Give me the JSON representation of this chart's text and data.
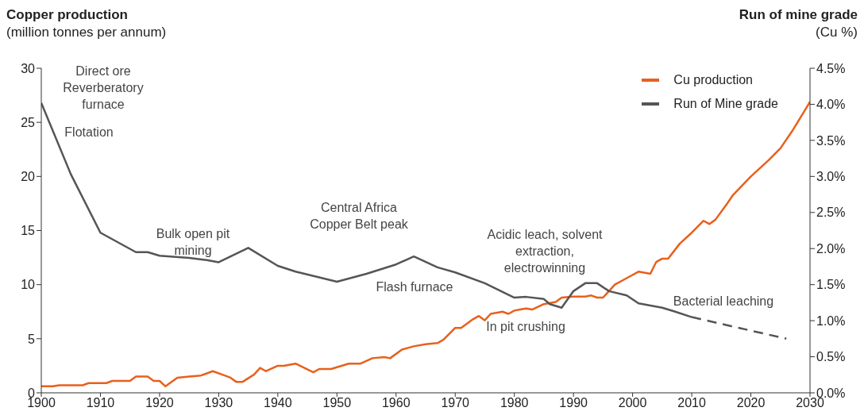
{
  "chart_data": {
    "type": "line",
    "ylabel": "Copper production\n(million tonnes per annum)",
    "y2label": "Run of mine grade\n(Cu %)",
    "xlim": [
      1900,
      2030
    ],
    "xticks": [
      1900,
      1910,
      1920,
      1930,
      1940,
      1950,
      1960,
      1970,
      1980,
      1990,
      2000,
      2010,
      2020,
      2030
    ],
    "ylim": [
      0,
      30
    ],
    "yticks": [
      0,
      5,
      10,
      15,
      20,
      25,
      30
    ],
    "y2lim": [
      0,
      4.5
    ],
    "y2ticks": [
      {
        "value": 0,
        "label": "0.0%"
      },
      {
        "value": 0.5,
        "label": "0.5%"
      },
      {
        "value": 1,
        "label": "1.0%"
      },
      {
        "value": 1.5,
        "label": "1.5%"
      },
      {
        "value": 2,
        "label": "2.0%"
      },
      {
        "value": 2.5,
        "label": "2.5%"
      },
      {
        "value": 3,
        "label": "3.0%"
      },
      {
        "value": 3.5,
        "label": "3.5%"
      },
      {
        "value": 4,
        "label": "4.0%"
      },
      {
        "value": 4.5,
        "label": "4.5%"
      }
    ],
    "grid": false,
    "legend": "top right",
    "marker": "none",
    "series": [
      {
        "name": "Cu production",
        "color": "#e8601c",
        "line_style": "solid",
        "x": [
          1900,
          1902,
          1903,
          1905,
          1907,
          1908,
          1910,
          1911,
          1912,
          1915,
          1916,
          1918,
          1919,
          1920,
          1921,
          1923,
          1925,
          1927,
          1929,
          1931,
          1932,
          1933,
          1934,
          1936,
          1937,
          1938,
          1940,
          1941,
          1943,
          1946,
          1947,
          1949,
          1952,
          1954,
          1956,
          1958,
          1959,
          1961,
          1963,
          1965,
          1967,
          1968,
          1970,
          1971,
          1973,
          1974,
          1975,
          1976,
          1978,
          1979,
          1980,
          1981,
          1982,
          1983,
          1985,
          1987,
          1988,
          1990,
          1992,
          1993,
          1994,
          1995,
          1997,
          1999,
          2001,
          2003,
          2004,
          2005,
          2006,
          2008,
          2010,
          2012,
          2013,
          2014,
          2016,
          2017,
          2020,
          2023,
          2025,
          2027,
          2030
        ],
        "values": [
          0.6,
          0.6,
          0.7,
          0.7,
          0.7,
          0.9,
          0.9,
          0.9,
          1.1,
          1.1,
          1.5,
          1.5,
          1.1,
          1.1,
          0.6,
          1.4,
          1.5,
          1.6,
          2.0,
          1.6,
          1.4,
          1.0,
          1.0,
          1.7,
          2.3,
          2.0,
          2.5,
          2.5,
          2.7,
          1.9,
          2.2,
          2.2,
          2.7,
          2.7,
          3.2,
          3.3,
          3.2,
          4.0,
          4.3,
          4.5,
          4.6,
          4.9,
          6.0,
          6.0,
          6.8,
          7.1,
          6.7,
          7.3,
          7.5,
          7.3,
          7.6,
          7.7,
          7.8,
          7.7,
          8.2,
          8.4,
          8.8,
          8.9,
          8.9,
          9.0,
          8.8,
          8.8,
          10.0,
          10.6,
          11.2,
          11.0,
          12.1,
          12.4,
          12.4,
          13.8,
          14.8,
          15.9,
          15.6,
          16.0,
          17.5,
          18.3,
          20.0,
          21.5,
          22.6,
          24.2,
          26.9
        ]
      },
      {
        "name": "Run of Mine grade",
        "color": "#555555",
        "axis": "y2",
        "line_style": "solid",
        "x": [
          1900,
          1905,
          1910,
          1916,
          1918,
          1920,
          1925,
          1928,
          1930,
          1935,
          1940,
          1943,
          1950,
          1955,
          1960,
          1963,
          1967,
          1970,
          1975,
          1980,
          1982,
          1985,
          1986,
          1988,
          1990,
          1992,
          1994,
          1996,
          1999,
          2001,
          2005,
          2007,
          2010
        ],
        "values": [
          4.02,
          3.03,
          2.22,
          1.95,
          1.95,
          1.9,
          1.87,
          1.84,
          1.81,
          2.01,
          1.76,
          1.68,
          1.54,
          1.65,
          1.78,
          1.89,
          1.74,
          1.67,
          1.52,
          1.32,
          1.33,
          1.3,
          1.23,
          1.18,
          1.41,
          1.52,
          1.52,
          1.41,
          1.35,
          1.24,
          1.18,
          1.13,
          1.05
        ]
      },
      {
        "color": "#555555",
        "axis": "y2",
        "line_style": "dashed",
        "x": [
          2010,
          2026
        ],
        "values": [
          1.05,
          0.75
        ]
      }
    ],
    "annotations": [
      "Direct ore\nReverberatory\nfurnace",
      "Flotation",
      "Bulk open pit\nmining",
      "Central Africa\nCopper Belt peak",
      "Flash furnace",
      "Acidic leach, solvent\nextraction,\nelectrowinning",
      "In pit crushing",
      "Bacterial leaching"
    ]
  }
}
